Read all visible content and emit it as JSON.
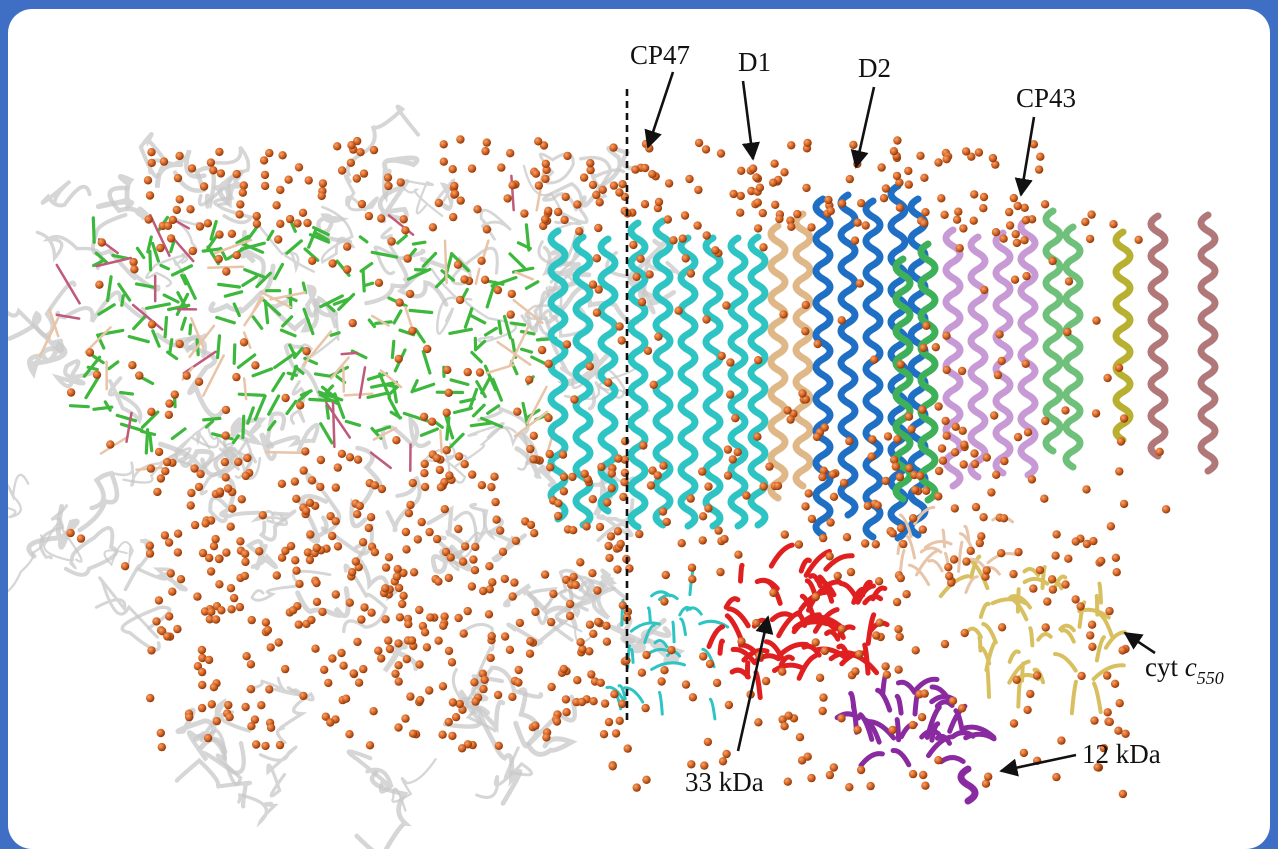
{
  "figure": {
    "background_color": "#3F6FC4",
    "panel_color": "#FFFFFF",
    "labels": {
      "cp47": "CP47",
      "d1": "D1",
      "d2": "D2",
      "cp43": "CP43",
      "cyt_prefix": "cyt ",
      "cyt_c": "c",
      "cyt_sub": "550",
      "kda33": "33 kDa",
      "kda12": "12 kDa"
    },
    "colors": {
      "water": "#D4621F",
      "chlorophyll": "#3DB83D",
      "cp47": "#2EC4C4",
      "d1": "#E0B888",
      "d2": "#1F6FC4",
      "cp43": "#C79AD6",
      "extrinsic_33kda": "#E02020",
      "extrinsic_12kda": "#8A2AA0",
      "cyt_c550": "#D8C060",
      "other_subunits": "#C8C8C8",
      "mauve_helices": "#B07878",
      "olive_helix": "#B8B030"
    },
    "icons": [
      "arrow-icon"
    ]
  }
}
